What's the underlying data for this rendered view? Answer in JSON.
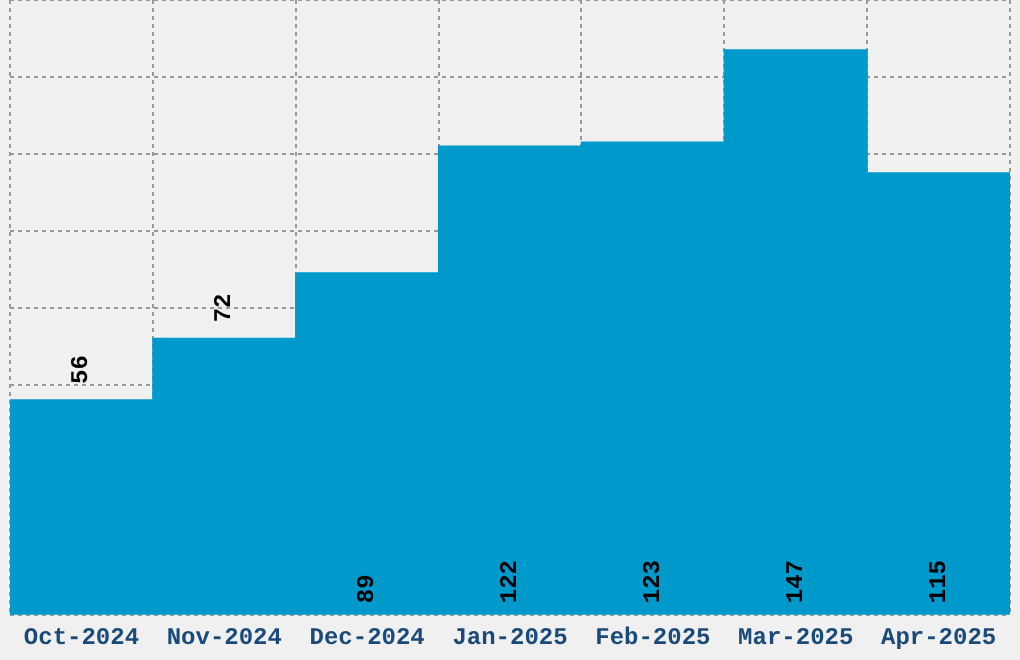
{
  "chart_data": {
    "type": "bar",
    "categories": [
      "Oct-2024",
      "Nov-2024",
      "Dec-2024",
      "Jan-2025",
      "Feb-2025",
      "Mar-2025",
      "Apr-2025"
    ],
    "values": [
      56,
      72,
      89,
      122,
      123,
      147,
      115
    ],
    "color": "#0099cc",
    "data_labels": true,
    "grid": true,
    "tick_labels": "x"
  }
}
